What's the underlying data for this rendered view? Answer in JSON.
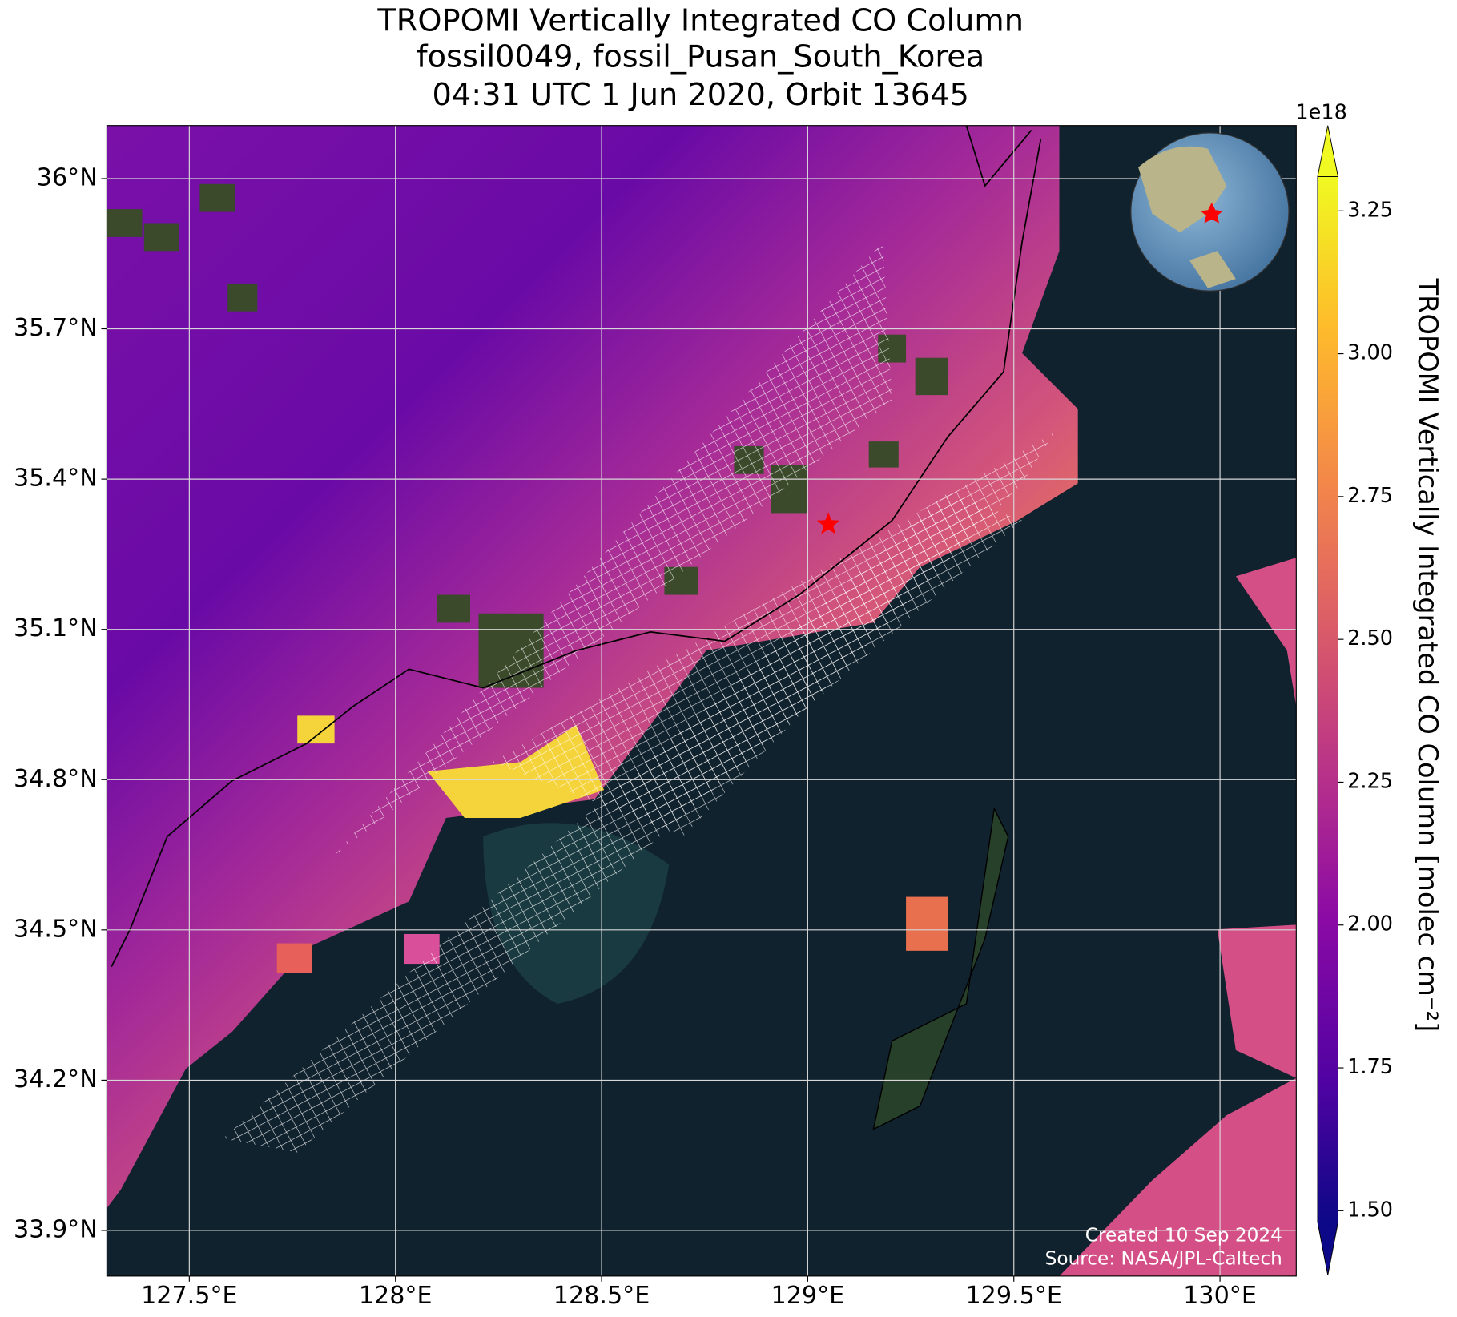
{
  "chart_data": {
    "type": "map",
    "title": [
      "TROPOMI Vertically Integrated CO Column",
      "fossil0049, fossil_Pusan_South_Korea",
      "04:31 UTC 1 Jun 2020, Orbit 13645"
    ],
    "xlim": [
      127.3,
      130.185
    ],
    "ylim": [
      33.809,
      36.106
    ],
    "xticks": [
      {
        "value": 127.5,
        "label": "127.5°E"
      },
      {
        "value": 128,
        "label": "128°E"
      },
      {
        "value": 128.5,
        "label": "128.5°E"
      },
      {
        "value": 129,
        "label": "129°E"
      },
      {
        "value": 129.5,
        "label": "129.5°E"
      },
      {
        "value": 130,
        "label": "130°E"
      }
    ],
    "yticks": [
      {
        "value": 33.9,
        "label": "33.9°N"
      },
      {
        "value": 34.2,
        "label": "34.2°N"
      },
      {
        "value": 34.5,
        "label": "34.5°N"
      },
      {
        "value": 34.8,
        "label": "34.8°N"
      },
      {
        "value": 35.1,
        "label": "35.1°N"
      },
      {
        "value": 35.4,
        "label": "35.4°N"
      },
      {
        "value": 35.7,
        "label": "35.7°N"
      },
      {
        "value": 36,
        "label": "36°N"
      }
    ],
    "grid": true,
    "site": {
      "lon": 129.05,
      "lat": 35.31,
      "color": "#ff0000"
    },
    "colorbar": {
      "label": "TROPOMI Vertically Integrated CO Column [molec cm⁻²]",
      "offset": "1e18",
      "cmap": "plasma",
      "extend": "both",
      "clim": [
        1.48,
        3.31
      ],
      "ticks": [
        {
          "value": 1.5,
          "label": "1.50"
        },
        {
          "value": 1.75,
          "label": "1.75"
        },
        {
          "value": 2.0,
          "label": "2.00"
        },
        {
          "value": 2.25,
          "label": "2.25"
        },
        {
          "value": 2.5,
          "label": "2.50"
        },
        {
          "value": 2.75,
          "label": "2.75"
        },
        {
          "value": 3.0,
          "label": "3.00"
        },
        {
          "value": 3.25,
          "label": "3.25"
        }
      ]
    },
    "annotations": [
      "Created 10 Sep 2024",
      "Source: NASA/JPL-Caltech"
    ]
  }
}
